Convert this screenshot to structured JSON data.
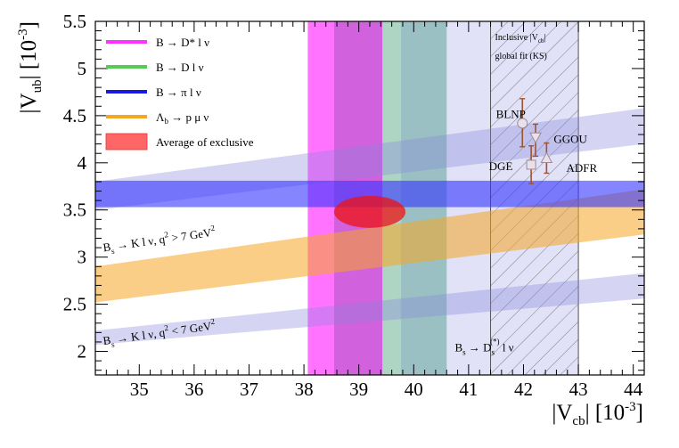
{
  "chart_data": {
    "type": "scatter",
    "xlabel": "|V",
    "xlabel_sub": "cb",
    "xlabel_unit": "| [10",
    "xlabel_exp": "-3",
    "xlabel_close": "]",
    "ylabel": "|V",
    "ylabel_sub": "ub",
    "ylabel_unit": "| [10",
    "ylabel_exp": "-3",
    "ylabel_close": "]",
    "xlim": [
      34.2,
      44.2
    ],
    "ylim": [
      1.75,
      5.5
    ],
    "xticks": [
      "35",
      "36",
      "37",
      "38",
      "39",
      "40",
      "41",
      "42",
      "43",
      "44"
    ],
    "yticks": [
      "2",
      "2.5",
      "3",
      "3.5",
      "4",
      "4.5",
      "5",
      "5.5"
    ],
    "vbands": [
      {
        "name": "B → D* l ν",
        "x": [
          38.07,
          39.43
        ],
        "color": "#ff00ff",
        "opacity": 0.55
      },
      {
        "name": "overlap D* / D",
        "x": [
          38.55,
          39.43
        ],
        "color": "#7a3f9a",
        "opacity": 0.35
      },
      {
        "name": "B → D l ν",
        "x": [
          39.43,
          40.6
        ],
        "color": "#33cc33",
        "opacity": 0.38
      },
      {
        "name": "overlap D / πlν band",
        "x": [
          39.77,
          40.6
        ],
        "color": "#3a6fb0",
        "opacity": 0.25
      },
      {
        "name": "Inclusive band",
        "x": [
          39.43,
          43.0
        ],
        "color": "#a8a8e8",
        "opacity": 0.35
      }
    ],
    "inclusive_hatch": {
      "x": [
        41.4,
        43.0
      ],
      "label_line1": "Inclusive |V",
      "label_sub": "cb",
      "label_line1_end": "|",
      "label_line2": "global fit (KS)"
    },
    "hband_pi": {
      "name": "B → π l ν",
      "y": [
        3.53,
        3.81
      ],
      "color": "#3333ff",
      "opacity": 0.6
    },
    "diag_bands": [
      {
        "name": "Bs → K l ν, q² > 7 GeV²",
        "y_low": [
          3.5,
          4.2
        ],
        "y_high": [
          3.8,
          4.58
        ],
        "color": "#8888dd",
        "opacity": 0.35
      },
      {
        "name": "Λb → p μ ν",
        "y_low": [
          2.52,
          3.24
        ],
        "y_high": [
          2.9,
          3.72
        ],
        "color": "#f5a623",
        "opacity": 0.55
      },
      {
        "name": "Bs → K l ν, q² < 7 GeV²",
        "y_low": [
          2.07,
          2.56
        ],
        "y_high": [
          2.22,
          2.83
        ],
        "color": "#8888dd",
        "opacity": 0.35
      }
    ],
    "ellipse": {
      "name": "Average of exclusive",
      "cx": 39.2,
      "cy": 3.48,
      "rx": 0.65,
      "ry": 0.17,
      "color": "#ee1111",
      "opacity": 0.75
    },
    "points": [
      {
        "label": "BLNP",
        "x": 41.98,
        "y": 4.42,
        "err_up": 0.26,
        "err_down": 0.25,
        "marker": "circle"
      },
      {
        "label": "GGOU",
        "x": 42.22,
        "y": 4.27,
        "err_up": 0.14,
        "err_down": 0.2,
        "marker": "triangle-down"
      },
      {
        "label": "DGE",
        "x": 42.14,
        "y": 3.98,
        "err_up": 0.2,
        "err_down": 0.2,
        "marker": "square"
      },
      {
        "label": "ADFR",
        "x": 42.42,
        "y": 4.05,
        "err_up": 0.16,
        "err_down": 0.16,
        "marker": "triangle-up"
      }
    ],
    "point_labels": [
      {
        "text": "BLNP",
        "x": 41.5,
        "y": 4.52
      },
      {
        "text": "GGOU",
        "x": 42.55,
        "y": 4.26
      },
      {
        "text": "DGE",
        "x": 41.37,
        "y": 3.97
      },
      {
        "text": "ADFR",
        "x": 42.78,
        "y": 3.95
      }
    ],
    "annotations": [
      {
        "main": "B",
        "sub": "s",
        "rest": " → K l ν, q",
        "sup": "2",
        "tail": " > 7 GeV",
        "sup2": "2",
        "x": 34.35,
        "y": 3.06,
        "rotate": -8
      },
      {
        "main": "B",
        "sub": "s",
        "rest": " → K l ν, q",
        "sup": "2",
        "tail": " < 7 GeV",
        "sup2": "2",
        "x": 34.35,
        "y": 2.07,
        "rotate": -8
      },
      {
        "main": "B",
        "sub": "s",
        "rest": " → D",
        "sub2": "s",
        "sup": "(*)",
        "tail": " l ν",
        "x": 40.75,
        "y": 2.0,
        "rotate": 0
      }
    ],
    "legend": [
      {
        "label": "B → D* l ν",
        "color": "#ff33ff",
        "style": "line"
      },
      {
        "label": "B → D l ν",
        "color": "#55cc55",
        "style": "line"
      },
      {
        "label": "B → π l ν",
        "color": "#1a1adf",
        "style": "line"
      },
      {
        "label": "Λ",
        "label_sub": "b",
        "label_rest": " → p μ ν",
        "color": "#f5a623",
        "style": "line"
      },
      {
        "label": "Average of exclusive",
        "color": "#ff6666",
        "style": "box"
      }
    ]
  }
}
